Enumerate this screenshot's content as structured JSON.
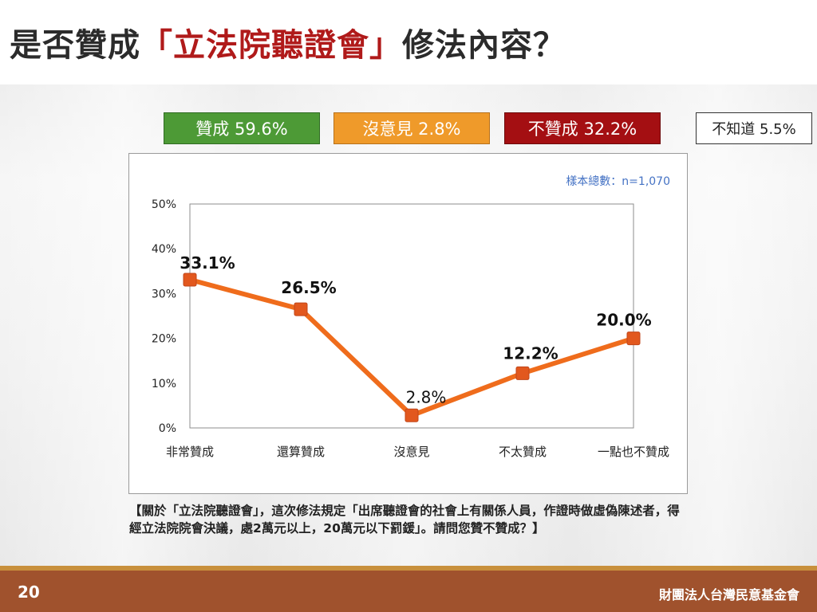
{
  "slide": {
    "title_prefix": "是否贊成",
    "title_highlight": "「立法院聽證會」",
    "title_suffix": "修法內容？",
    "page_number": "20",
    "organization": "財團法人台灣民意基金會",
    "question_text": "【關於「立法院聽證會」，這次修法規定「出席聽證會的社會上有關係人員，作證時做虛偽陳述者，得經立法院院會決議，處2萬元以上，20萬元以下罰鍰」。請問您贊不贊成？】",
    "colors": {
      "title_highlight": "#b01a1a",
      "agree": "#4d9a36",
      "neutral": "#ef9a2a",
      "disagree": "#a40f12",
      "footer": "#a0522d",
      "footer_stripe": "#c8903c"
    }
  },
  "summary": {
    "agree": "贊成 59.6%",
    "neutral": "沒意見 2.8%",
    "disagree": "不贊成 32.2%",
    "unknown": "不知道 5.5%"
  },
  "chart_data": {
    "type": "line",
    "categories": [
      "非常贊成",
      "還算贊成",
      "沒意見",
      "不太贊成",
      "一點也不贊成"
    ],
    "values": [
      33.1,
      26.5,
      2.8,
      12.2,
      20.0
    ],
    "data_labels": [
      "33.1%",
      "26.5%",
      "2.8%",
      "12.2%",
      "20.0%"
    ],
    "y_ticks": [
      "0%",
      "10%",
      "20%",
      "30%",
      "40%",
      "50%"
    ],
    "ylim": [
      0,
      50
    ],
    "sample_note": "樣本總數：n=1,070",
    "series_color": "#ef6c1c",
    "marker_color": "#e2581e",
    "grid": false
  }
}
